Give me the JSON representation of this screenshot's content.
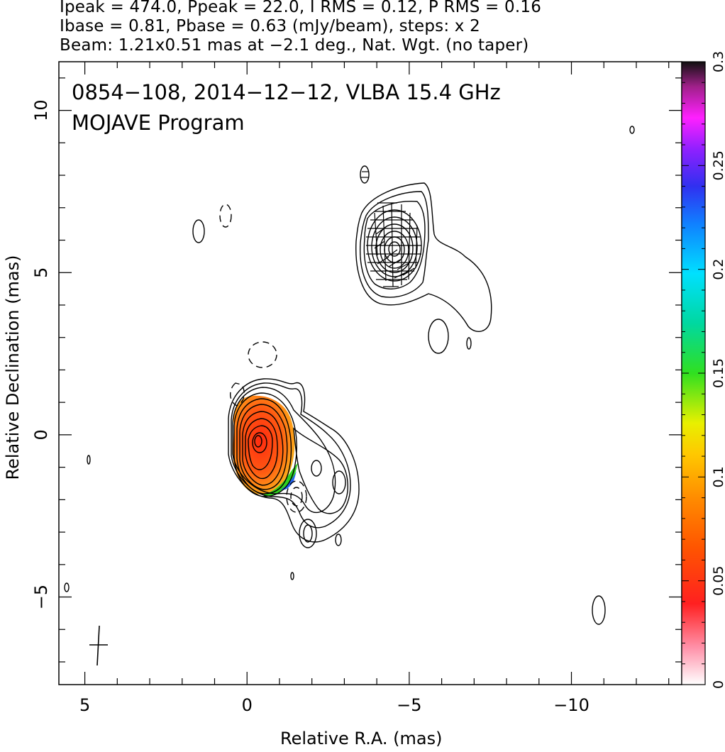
{
  "header": {
    "line1": "Ipeak = 474.0, Ppeak = 22.0, I RMS = 0.12, P RMS = 0.16",
    "line2": "Ibase = 0.81, Pbase = 0.63 (mJy/beam), steps: x 2",
    "line3": "Beam: 1.21x0.51 mas at −2.1 deg., Nat. Wgt. (no taper)"
  },
  "chart_data": {
    "type": "heatmap",
    "title": "0854−108, 2014−12−12, VLBA 15.4 GHz",
    "subtitle": "MOJAVE Program",
    "xlabel": "Relative R.A. (mas)",
    "ylabel": "Relative Declination (mas)",
    "xlim": [
      5.8,
      -13.4
    ],
    "ylim": [
      -7.7,
      11.5
    ],
    "x_ticks": [
      5,
      0,
      -5,
      -10
    ],
    "x_tick_labels": [
      "5",
      "0",
      "−5",
      "−10"
    ],
    "y_ticks": [
      -5,
      0,
      5,
      10
    ],
    "y_tick_labels": [
      "−5",
      "0",
      "5",
      "10"
    ],
    "colorbar": {
      "range": [
        0,
        0.3
      ],
      "ticks": [
        0,
        0.05,
        0.1,
        0.15,
        0.2,
        0.25,
        0.3
      ],
      "tick_labels": [
        "0",
        "0.05",
        "0.1",
        "0.15",
        "0.2",
        "0.25",
        "0.3"
      ]
    },
    "components": [
      {
        "id": "core",
        "x": 0.4,
        "y": -0.3,
        "contour_levels": 10
      },
      {
        "id": "jet-knot",
        "x": -4.7,
        "y": 5.7,
        "contour_levels": 8
      },
      {
        "id": "jet-inner",
        "x": -2.2,
        "y": -1.8,
        "contour_levels": 3
      }
    ],
    "beam": {
      "major_mas": 1.21,
      "minor_mas": 0.51,
      "pa_deg": -2.1,
      "x": 4.5,
      "y": -6.5
    }
  }
}
